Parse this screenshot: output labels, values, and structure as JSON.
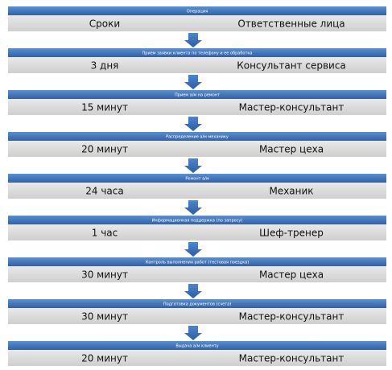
{
  "steps": [
    {
      "operation": "Операция",
      "time": "Сроки",
      "responsible": "Ответственные лица"
    },
    {
      "operation": "Прием заявки клиента по телефону и ее обработка",
      "time": "3 дня",
      "responsible": "Консультант сервиса"
    },
    {
      "operation": "Прием а/м на ремонт",
      "time": "15 минут",
      "responsible": "Мастер-консультант"
    },
    {
      "operation": "Распределение а/м механику",
      "time": "20 минут",
      "responsible": "Мастер цеха"
    },
    {
      "operation": "Ремонт а/м",
      "time": "24 часа",
      "responsible": "Механик"
    },
    {
      "operation": "Информационная поддержка (по запросу)",
      "time": "1 час",
      "responsible": "Шеф-тренер"
    },
    {
      "operation": "Контроль выполнения работ (тестовая поездка)",
      "time": "30 минут",
      "responsible": "Мастер цеха"
    },
    {
      "operation": "Подготовка документов (счета)",
      "time": "30 минут",
      "responsible": "Мастер-консультант"
    },
    {
      "operation": "Выдача а/м клиенту",
      "time": "20 минут",
      "responsible": "Мастер-консультант"
    }
  ]
}
